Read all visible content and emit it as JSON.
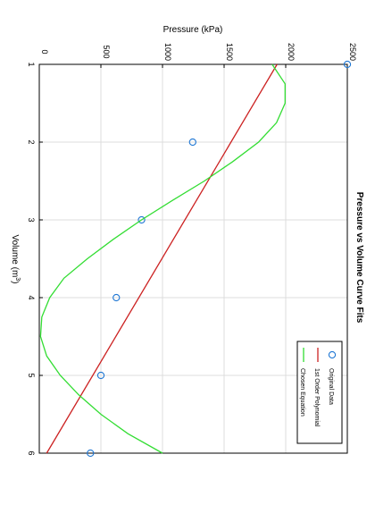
{
  "chart_data": {
    "type": "line",
    "title": "Pressure vs Volume Curve Fits",
    "xlabel": "Volume (m",
    "xlabel_sup": "3",
    "xlabel_tail": ")",
    "ylabel": "Pressure (kPa)",
    "xlim": [
      1,
      6
    ],
    "ylim": [
      0,
      2500
    ],
    "x_ticks": [
      "1",
      "2",
      "3",
      "4",
      "5",
      "6"
    ],
    "y_ticks": [
      "0",
      "500",
      "1000",
      "1500",
      "2000",
      "2500"
    ],
    "grid": true,
    "legend_position": "bottom-right",
    "orientation": "rotated 90 degrees clockwise",
    "series": [
      {
        "name": "Original Data",
        "kind": "scatter",
        "color": "#1f77d4",
        "x": [
          1,
          2,
          3,
          4,
          5,
          6
        ],
        "y": [
          2500,
          1245,
          830,
          625,
          500,
          415
        ]
      },
      {
        "name": "1st Order Polynomial",
        "kind": "line",
        "color": "#cc2222",
        "x": [
          1,
          6
        ],
        "y": [
          1930,
          60
        ]
      },
      {
        "name": "Chosen Equation",
        "kind": "line",
        "color": "#33dd33",
        "x": [
          1.0,
          1.25,
          1.5,
          1.75,
          2.0,
          2.25,
          2.5,
          2.75,
          3.0,
          3.25,
          3.5,
          3.75,
          4.0,
          4.25,
          4.5,
          4.75,
          5.0,
          5.25,
          5.5,
          5.75,
          6.0
        ],
        "y": [
          1890,
          1995,
          1995,
          1925,
          1780,
          1570,
          1340,
          1080,
          830,
          600,
          390,
          200,
          85,
          20,
          10,
          60,
          170,
          320,
          500,
          720,
          1000
        ]
      }
    ]
  }
}
